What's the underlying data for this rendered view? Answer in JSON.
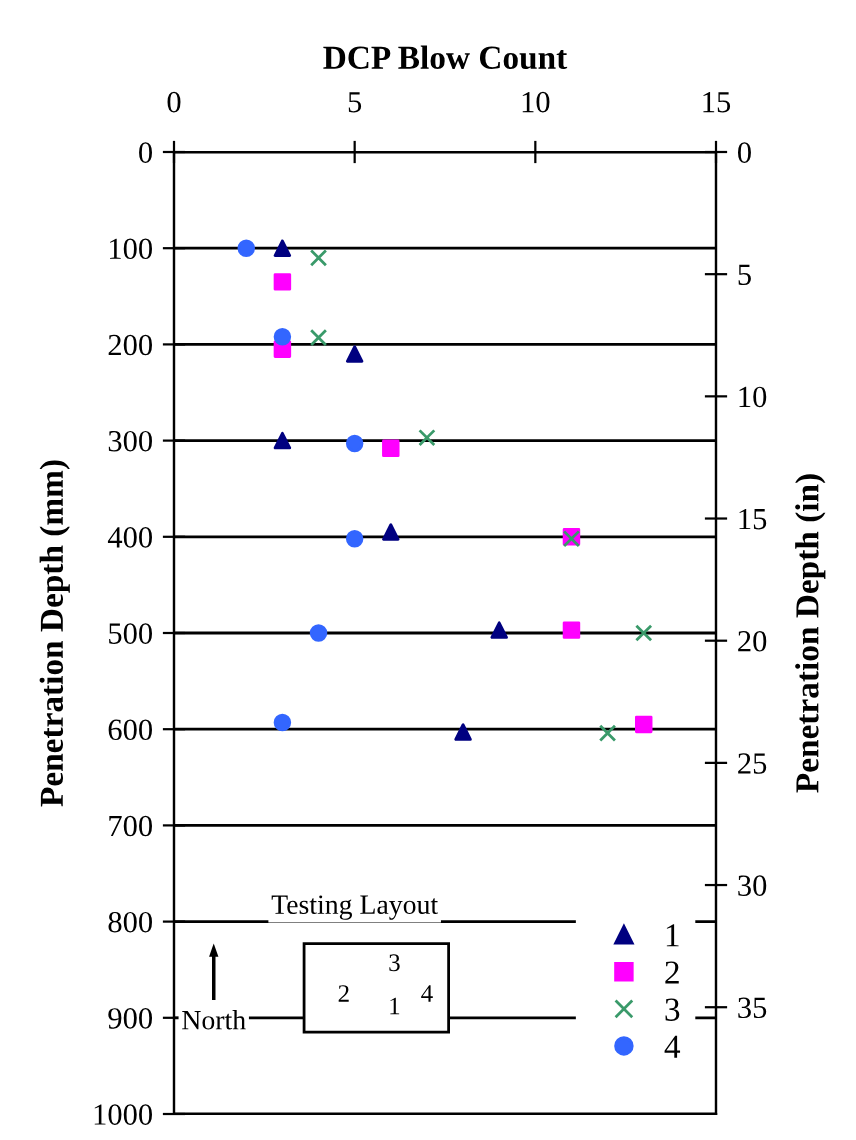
{
  "chart_data": {
    "type": "scatter",
    "title": "DCP Blow Count",
    "ylabel": "Penetration Depth (mm)",
    "y2label": "Penetration Depth (in)",
    "xlim": [
      0,
      15
    ],
    "xticks": [
      0,
      5,
      10,
      15
    ],
    "ylim": [
      1000,
      0
    ],
    "yticks": [
      0,
      100,
      200,
      300,
      400,
      500,
      600,
      700,
      800,
      900,
      1000
    ],
    "y2lim": [
      39.37,
      0
    ],
    "y2ticks": [
      0,
      5,
      10,
      15,
      20,
      25,
      30,
      35
    ],
    "grid": "y",
    "legend": "bottom right",
    "series": [
      {
        "name": "1",
        "color": "#000080",
        "marker": "triangle",
        "x": [
          3,
          5,
          3,
          6,
          9,
          8
        ],
        "values": [
          100,
          210,
          300,
          395,
          497,
          603
        ]
      },
      {
        "name": "2",
        "color": "#ff00ff",
        "marker": "square",
        "x": [
          3,
          3,
          6,
          11,
          11,
          13
        ],
        "values": [
          135,
          205,
          308,
          400,
          497,
          595
        ]
      },
      {
        "name": "3",
        "color": "#3a9a6a",
        "marker": "cross",
        "x": [
          4,
          4,
          7,
          11,
          13,
          12
        ],
        "values": [
          110,
          193,
          297,
          402,
          500,
          604
        ]
      },
      {
        "name": "4",
        "color": "#3366ff",
        "marker": "circle",
        "x": [
          2,
          3,
          5,
          5,
          4,
          3
        ],
        "values": [
          100,
          192,
          303,
          402,
          500,
          593
        ]
      }
    ],
    "annotations": [
      "Testing Layout",
      "North",
      "3",
      "2",
      "1",
      "4"
    ]
  }
}
